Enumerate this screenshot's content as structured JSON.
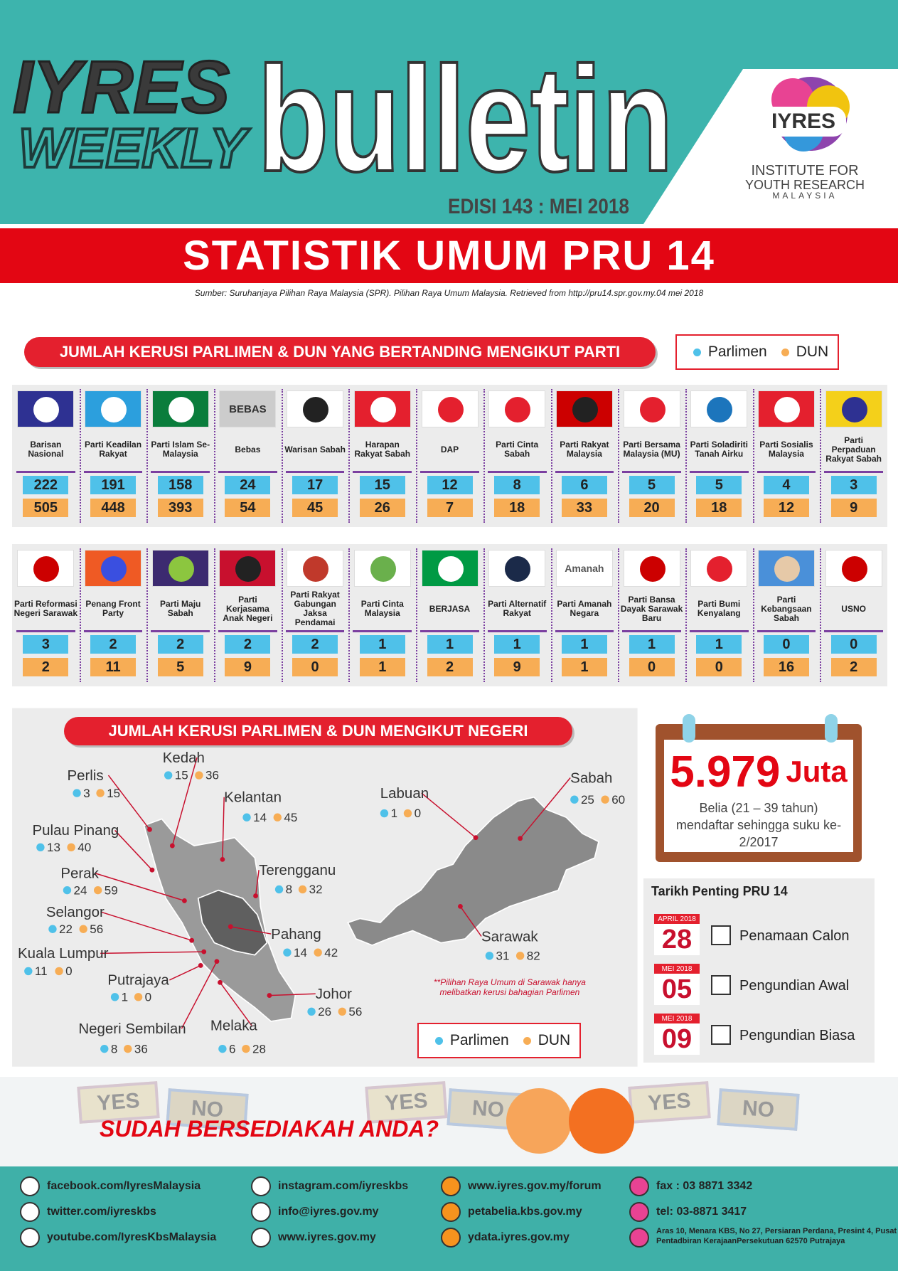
{
  "header": {
    "line1": "IYRES",
    "line2": "WEEKLY",
    "word": "bulletin",
    "edition": "EDISI 143 : MEI 2018",
    "logo": {
      "mark": "IYRES",
      "line1": "INSTITUTE FOR",
      "line2": "YOUTH RESEARCH",
      "line3": "MALAYSIA"
    }
  },
  "title": "STATISTIK UMUM PRU 14",
  "source": "Sumber:  Suruhanjaya Pilihan Raya Malaysia (SPR). Pilihan Raya Umum Malaysia. Retrieved from http://pru14.spr.gov.my.04 mei 2018",
  "parties": {
    "heading": "JUMLAH KERUSI PARLIMEN & DUN YANG BERTANDING MENGIKUT PARTI",
    "legend": {
      "parlimen": "Parlimen",
      "dun": "DUN"
    },
    "rows": [
      [
        {
          "name": "Barisan Nasional",
          "parlimen": 222,
          "dun": 505
        },
        {
          "name": "Parti Keadilan Rakyat",
          "parlimen": 191,
          "dun": 448
        },
        {
          "name": "Parti Islam Se-Malaysia",
          "parlimen": 158,
          "dun": 393
        },
        {
          "name": "Bebas",
          "parlimen": 24,
          "dun": 54,
          "logo_text": "BEBAS"
        },
        {
          "name": "Warisan Sabah",
          "parlimen": 17,
          "dun": 45
        },
        {
          "name": "Harapan Rakyat Sabah",
          "parlimen": 15,
          "dun": 26
        },
        {
          "name": "DAP",
          "parlimen": 12,
          "dun": 7
        },
        {
          "name": "Parti Cinta Sabah",
          "parlimen": 8,
          "dun": 18
        },
        {
          "name": "Parti Rakyat Malaysia",
          "parlimen": 6,
          "dun": 33
        },
        {
          "name": "Parti Bersama Malaysia (MU)",
          "parlimen": 5,
          "dun": 20
        },
        {
          "name": "Parti Soladiriti Tanah Airku",
          "parlimen": 5,
          "dun": 18
        },
        {
          "name": "Parti Sosialis Malaysia",
          "parlimen": 4,
          "dun": 12
        },
        {
          "name": "Parti Perpaduan Rakyat Sabah",
          "parlimen": 3,
          "dun": 9
        }
      ],
      [
        {
          "name": "Parti Reformasi Negeri Sarawak",
          "parlimen": 3,
          "dun": 2
        },
        {
          "name": "Penang Front Party",
          "parlimen": 2,
          "dun": 11
        },
        {
          "name": "Parti Maju Sabah",
          "parlimen": 2,
          "dun": 5
        },
        {
          "name": "Parti Kerjasama Anak Negeri",
          "parlimen": 2,
          "dun": 9
        },
        {
          "name": "Parti Rakyat Gabungan Jaksa Pendamai",
          "parlimen": 2,
          "dun": 0
        },
        {
          "name": "Parti Cinta Malaysia",
          "parlimen": 1,
          "dun": 1
        },
        {
          "name": "BERJASA",
          "parlimen": 1,
          "dun": 2
        },
        {
          "name": "Parti Alternatif Rakyat",
          "parlimen": 1,
          "dun": 9
        },
        {
          "name": "Parti Amanah Negara",
          "parlimen": 1,
          "dun": 1,
          "logo_text": "Amanah"
        },
        {
          "name": "Parti Bansa Dayak Sarawak Baru",
          "parlimen": 1,
          "dun": 0
        },
        {
          "name": "Parti Bumi Kenyalang",
          "parlimen": 1,
          "dun": 0
        },
        {
          "name": "Parti Kebangsaan Sabah",
          "parlimen": 0,
          "dun": 16
        },
        {
          "name": "USNO",
          "parlimen": 0,
          "dun": 2
        }
      ]
    ]
  },
  "states": {
    "heading": "JUMLAH KERUSI PARLIMEN & DUN MENGIKUT NEGERI",
    "note": "**Pilihan Raya Umum di Sarawak hanya melibatkan kerusi bahagian Parlimen",
    "items": [
      {
        "name": "Perlis",
        "parlimen": 3,
        "dun": 15
      },
      {
        "name": "Kedah",
        "parlimen": 15,
        "dun": 36
      },
      {
        "name": "Kelantan",
        "parlimen": 14,
        "dun": 45
      },
      {
        "name": "Pulau Pinang",
        "parlimen": 13,
        "dun": 40
      },
      {
        "name": "Perak",
        "parlimen": 24,
        "dun": 59
      },
      {
        "name": "Terengganu",
        "parlimen": 8,
        "dun": 32
      },
      {
        "name": "Selangor",
        "parlimen": 22,
        "dun": 56
      },
      {
        "name": "Pahang",
        "parlimen": 14,
        "dun": 42
      },
      {
        "name": "Kuala Lumpur",
        "parlimen": 11,
        "dun": 0
      },
      {
        "name": "Putrajaya",
        "parlimen": 1,
        "dun": 0
      },
      {
        "name": "Johor",
        "parlimen": 26,
        "dun": 56
      },
      {
        "name": "Negeri Sembilan",
        "parlimen": 8,
        "dun": 36
      },
      {
        "name": "Melaka",
        "parlimen": 6,
        "dun": 28
      },
      {
        "name": "Labuan",
        "parlimen": 1,
        "dun": 0
      },
      {
        "name": "Sabah",
        "parlimen": 25,
        "dun": 60
      },
      {
        "name": "Sarawak",
        "parlimen": 31,
        "dun": 82
      }
    ]
  },
  "youth": {
    "value": "5.979",
    "unit": "Juta",
    "description": "Belia (21 – 39 tahun) mendaftar sehingga suku ke-2/2017"
  },
  "dates": {
    "heading": "Tarikh Penting PRU 14",
    "items": [
      {
        "month": "APRIL 2018",
        "day": "28",
        "event": "Penamaan Calon"
      },
      {
        "month": "MEI 2018",
        "day": "05",
        "event": "Pengundian Awal"
      },
      {
        "month": "MEI 2018",
        "day": "09",
        "event": "Pengundian Biasa"
      }
    ]
  },
  "banner": {
    "slogan": "SUDAH BERSEDIAKAH ANDA?",
    "signs": [
      "YES",
      "NO",
      "YES",
      "NO",
      "YES",
      "NO"
    ]
  },
  "footer": {
    "contacts": [
      "facebook.com/IyresMalaysia",
      "twitter.com/iyreskbs",
      "youtube.com/IyresKbsMalaysia",
      "instagram.com/iyreskbs",
      "info@iyres.gov.my",
      "www.iyres.gov.my",
      "www.iyres.gov.my/forum",
      "petabelia.kbs.gov.my",
      "ydata.iyres.gov.my",
      "fax : 03 8871 3342",
      "tel: 03-8871 3417",
      "Aras 10, Menara KBS, No 27, Persiaran Perdana, Presint 4, Pusat Pentadbiran KerajaanPersekutuan 62570 Putrajaya"
    ]
  }
}
